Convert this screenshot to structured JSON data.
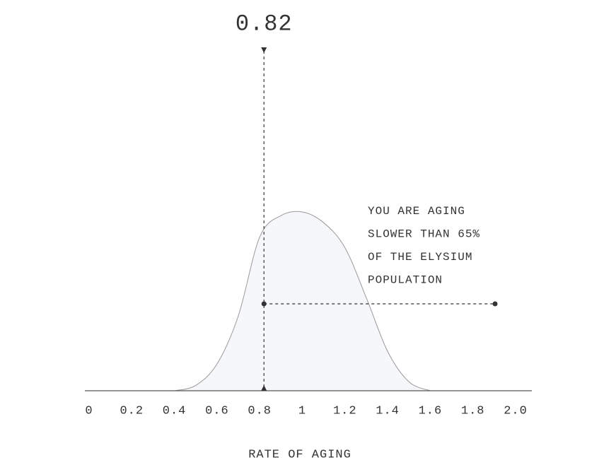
{
  "chart_data": {
    "type": "area",
    "x": [
      0.4,
      0.5,
      0.6,
      0.7,
      0.8,
      0.9,
      1.0,
      1.1,
      1.2,
      1.3,
      1.4,
      1.5,
      1.6
    ],
    "values": [
      0,
      0.03,
      0.15,
      0.42,
      0.86,
      0.98,
      1.0,
      0.94,
      0.8,
      0.52,
      0.22,
      0.05,
      0
    ],
    "color": "#f6f7fa",
    "line_color": "#999999",
    "xlim": [
      0,
      2
    ],
    "ylim": [
      0,
      1
    ],
    "xticks": [
      0,
      0.2,
      0.4,
      0.6,
      0.8,
      1,
      1.2,
      1.4,
      1.6,
      1.8,
      {
        "value": 2,
        "label": "2.0"
      }
    ],
    "xlabel": "RATE OF AGING",
    "marker": {
      "value": 0.82
    },
    "annotation": [
      "YOU ARE AGING",
      "SLOWER THAN 65%",
      "OF THE ELYSIUM",
      "POPULATION"
    ]
  }
}
